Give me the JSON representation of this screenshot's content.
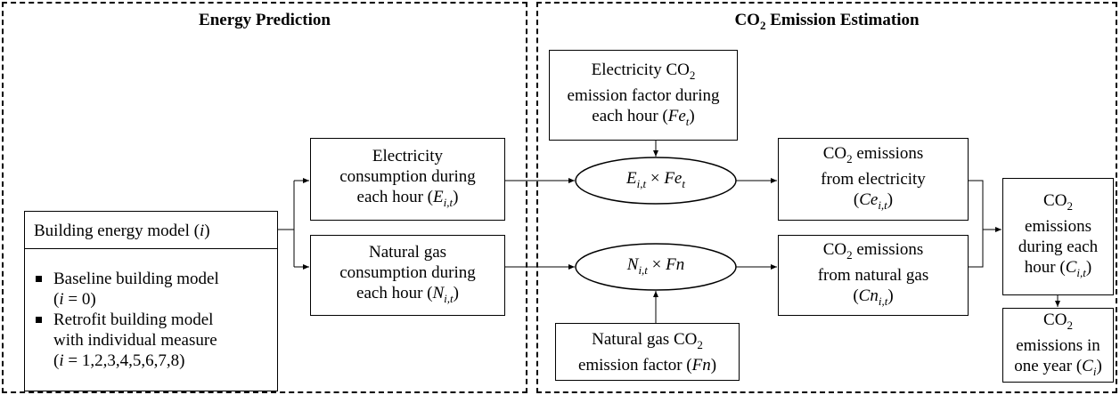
{
  "panels": [
    {
      "title": [
        [
          "Energy Prediction"
        ]
      ]
    },
    {
      "title": [
        [
          "CO",
          "2",
          " Emission Estimation"
        ]
      ]
    }
  ],
  "nodes": [
    {
      "lines": [
        [
          "Building energy model (",
          "i",
          ")"
        ]
      ]
    },
    {
      "lines": [
        [
          "Baseline building model"
        ],
        [
          "(",
          "i",
          " = 0)"
        ],
        [
          "Retrofit building model"
        ],
        [
          "with individual measure"
        ],
        [
          "(",
          "i",
          " = 1,2,3,4,5,6,7,8)"
        ]
      ]
    },
    {
      "lines": [
        [
          "Electricity"
        ],
        [
          "consumption during"
        ],
        [
          "each hour (",
          "E",
          "i,t",
          ")"
        ]
      ]
    },
    {
      "lines": [
        [
          "Natural gas"
        ],
        [
          "consumption during"
        ],
        [
          "each hour (",
          "N",
          "i,t",
          ")"
        ]
      ]
    },
    {
      "lines": [
        [
          "Electricity CO",
          "2"
        ],
        [
          "emission factor during"
        ],
        [
          "each hour (",
          "Fe",
          "t",
          ")"
        ]
      ]
    },
    {
      "lines": [
        [
          "Natural gas CO",
          "2"
        ],
        [
          "emission factor (",
          "Fn",
          ")"
        ]
      ]
    },
    {
      "lines": [
        [
          "E",
          "i,t",
          " × ",
          "Fe",
          "t"
        ]
      ]
    },
    {
      "lines": [
        [
          "N",
          "i,t",
          " × ",
          "Fn"
        ]
      ]
    },
    {
      "lines": [
        [
          "CO",
          "2",
          " emissions"
        ],
        [
          "from electricity"
        ],
        [
          "(",
          "Ce",
          "i,t",
          ")"
        ]
      ]
    },
    {
      "lines": [
        [
          "CO",
          "2",
          " emissions"
        ],
        [
          "from natural gas"
        ],
        [
          "(",
          "Cn",
          "i,t",
          ")"
        ]
      ]
    },
    {
      "lines": [
        [
          "CO",
          "2"
        ],
        [
          "emissions"
        ],
        [
          "during each"
        ],
        [
          "hour (",
          "C",
          "i,t",
          ")"
        ]
      ]
    },
    {
      "lines": [
        [
          "CO",
          "2"
        ],
        [
          "emissions in"
        ],
        [
          "one year (",
          "C",
          "i",
          ")"
        ]
      ]
    }
  ]
}
